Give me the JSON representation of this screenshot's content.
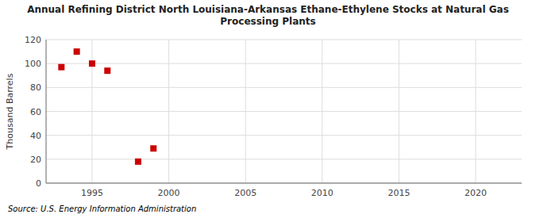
{
  "chart_data": {
    "type": "scatter",
    "title": "Annual Refining District North Louisiana-Arkansas Ethane-Ethylene Stocks at Natural Gas\nProcessing Plants",
    "ylabel": "Thousand Barrels",
    "annotations": [
      "Source: U.S. Energy Information Administration"
    ],
    "x": [
      1993,
      1994,
      1995,
      1996,
      1998,
      1999
    ],
    "values": [
      97,
      110,
      100,
      94,
      18,
      29
    ],
    "color": "#cc0000",
    "marker": "square",
    "xlim": [
      1992,
      2023
    ],
    "ylim": [
      0,
      120
    ],
    "xticks": [
      1995,
      2000,
      2005,
      2010,
      2015,
      2020
    ],
    "yticks": [
      0,
      20,
      40,
      60,
      80,
      100,
      120
    ],
    "grid": true
  }
}
